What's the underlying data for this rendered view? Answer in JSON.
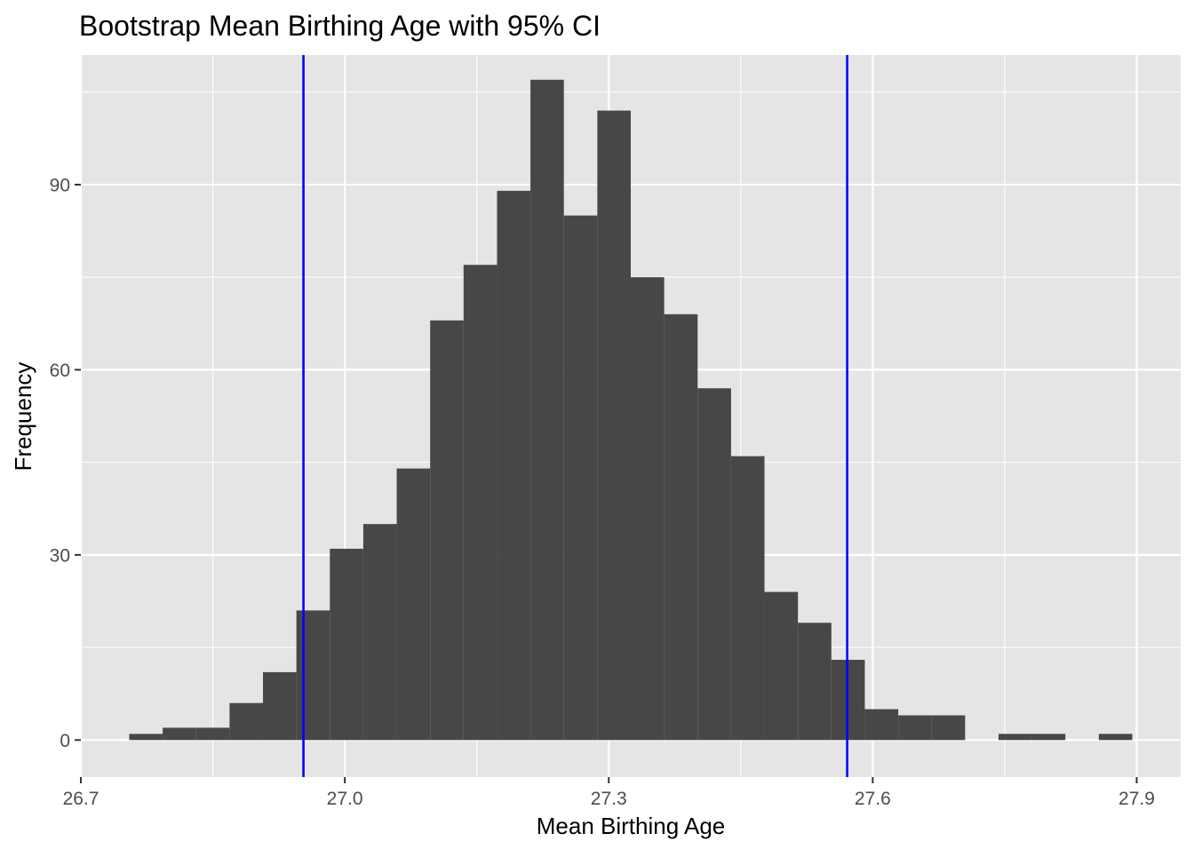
{
  "chart_data": {
    "type": "bar",
    "subtype": "histogram",
    "title": "Bootstrap Mean Birthing Age with 95% CI",
    "xlabel": "Mean Birthing Age",
    "ylabel": "Frequency",
    "xlim": [
      26.7,
      27.95
    ],
    "ylim": [
      -6,
      111
    ],
    "x_ticks": [
      26.7,
      27.0,
      27.3,
      27.6,
      27.9
    ],
    "x_tick_labels": [
      "26.7",
      "27.0",
      "27.3",
      "27.6",
      "27.9"
    ],
    "y_ticks": [
      0,
      30,
      60,
      90
    ],
    "y_tick_labels": [
      "0",
      "30",
      "60",
      "90"
    ],
    "bin_width": 0.038,
    "bins": [
      {
        "x0": 26.755,
        "x1": 26.793,
        "count": 1
      },
      {
        "x0": 26.793,
        "x1": 26.831,
        "count": 2
      },
      {
        "x0": 26.831,
        "x1": 26.869,
        "count": 2
      },
      {
        "x0": 26.869,
        "x1": 26.907,
        "count": 6
      },
      {
        "x0": 26.907,
        "x1": 26.945,
        "count": 11
      },
      {
        "x0": 26.945,
        "x1": 26.983,
        "count": 21
      },
      {
        "x0": 26.983,
        "x1": 27.021,
        "count": 31
      },
      {
        "x0": 27.021,
        "x1": 27.059,
        "count": 35
      },
      {
        "x0": 27.059,
        "x1": 27.097,
        "count": 44
      },
      {
        "x0": 27.097,
        "x1": 27.135,
        "count": 68
      },
      {
        "x0": 27.135,
        "x1": 27.173,
        "count": 77
      },
      {
        "x0": 27.173,
        "x1": 27.211,
        "count": 89
      },
      {
        "x0": 27.211,
        "x1": 27.249,
        "count": 107
      },
      {
        "x0": 27.249,
        "x1": 27.287,
        "count": 85
      },
      {
        "x0": 27.287,
        "x1": 27.325,
        "count": 102
      },
      {
        "x0": 27.325,
        "x1": 27.363,
        "count": 75
      },
      {
        "x0": 27.363,
        "x1": 27.401,
        "count": 69
      },
      {
        "x0": 27.401,
        "x1": 27.439,
        "count": 57
      },
      {
        "x0": 27.439,
        "x1": 27.477,
        "count": 46
      },
      {
        "x0": 27.477,
        "x1": 27.515,
        "count": 24
      },
      {
        "x0": 27.515,
        "x1": 27.553,
        "count": 19
      },
      {
        "x0": 27.553,
        "x1": 27.591,
        "count": 13
      },
      {
        "x0": 27.591,
        "x1": 27.629,
        "count": 5
      },
      {
        "x0": 27.629,
        "x1": 27.667,
        "count": 4
      },
      {
        "x0": 27.667,
        "x1": 27.705,
        "count": 4
      },
      {
        "x0": 27.705,
        "x1": 27.743,
        "count": 0
      },
      {
        "x0": 27.743,
        "x1": 27.781,
        "count": 1
      },
      {
        "x0": 27.781,
        "x1": 27.819,
        "count": 1
      },
      {
        "x0": 27.819,
        "x1": 27.857,
        "count": 0
      },
      {
        "x0": 27.857,
        "x1": 27.895,
        "count": 1
      }
    ],
    "ci_lines": [
      26.953,
      27.571
    ],
    "colors": {
      "panel_background": "#e5e5e5",
      "grid": "#ffffff",
      "bar_fill": "#474747",
      "ci_line": "#0000ff",
      "tick": "#333333",
      "tick_label": "#4d4d4d"
    },
    "grid": true,
    "legend": "none"
  }
}
